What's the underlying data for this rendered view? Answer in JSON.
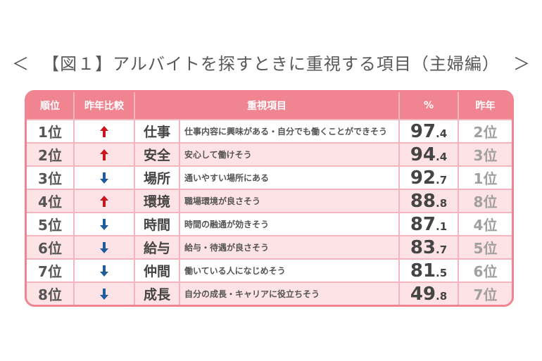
{
  "title_brackets": {
    "left": "＜",
    "right": "＞"
  },
  "colors": {
    "accent": "#f08591",
    "row_alt": "#fde2e6",
    "gap": "#f5b5be",
    "up": "#c9161d",
    "down": "#1e5c9b",
    "text": "#555555",
    "muted": "#a0a0a0"
  },
  "chart_data": {
    "type": "table",
    "title": "【図１】アルバイトを探すときに重視する項目（主婦編）",
    "columns": [
      "順位",
      "昨年比較",
      "重視項目",
      "%",
      "昨年"
    ],
    "rows": [
      {
        "rank": "1位",
        "trend_icon": "up-arrow-icon",
        "item": "仕事",
        "description": "仕事内容に興味がある・自分でも働くことができそう",
        "percent": "97.4",
        "last_year": "2位"
      },
      {
        "rank": "2位",
        "trend_icon": "up-arrow-icon",
        "item": "安全",
        "description": "安心して働けそう",
        "percent": "94.4",
        "last_year": "3位"
      },
      {
        "rank": "3位",
        "trend_icon": "down-arrow-icon",
        "item": "場所",
        "description": "通いやすい場所にある",
        "percent": "92.7",
        "last_year": "1位"
      },
      {
        "rank": "4位",
        "trend_icon": "up-arrow-icon",
        "item": "環境",
        "description": "職場環境が良さそう",
        "percent": "88.8",
        "last_year": "8位"
      },
      {
        "rank": "5位",
        "trend_icon": "down-arrow-icon",
        "item": "時間",
        "description": "時間の融通が効きそう",
        "percent": "87.1",
        "last_year": "4位"
      },
      {
        "rank": "6位",
        "trend_icon": "down-arrow-icon",
        "item": "給与",
        "description": "給与・待遇が良さそう",
        "percent": "83.7",
        "last_year": "5位"
      },
      {
        "rank": "7位",
        "trend_icon": "down-arrow-icon",
        "item": "仲間",
        "description": "働いている人になじめそう",
        "percent": "81.5",
        "last_year": "6位"
      },
      {
        "rank": "8位",
        "trend_icon": "down-arrow-icon",
        "item": "成長",
        "description": "自分の成長・キャリアに役立ちそう",
        "percent": "49.8",
        "last_year": "7位"
      }
    ]
  }
}
